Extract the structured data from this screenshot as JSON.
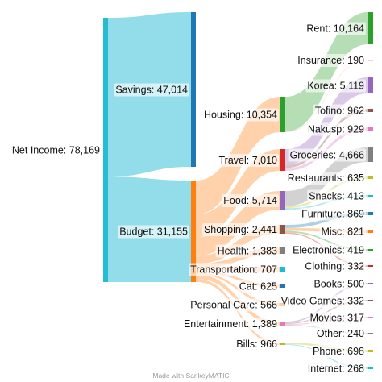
{
  "footer": {
    "credit": "Made with SankeyMATIC"
  },
  "colors": {
    "net": "#26bcd3",
    "savings": "#1f77b4",
    "budget": "#ff7f0e",
    "housing": "#2ca02c",
    "travel": "#d62728",
    "food": "#9467bd",
    "shopping": "#8c564b",
    "health": "#7f7f7f",
    "transport": "#17becf",
    "cat": "#1f77b4",
    "personal": "#ff7f0e",
    "entertainment": "#e377c2",
    "bills": "#bcbd22",
    "link_net": "#26bcd3"
  },
  "chart_data": {
    "type": "sankey",
    "nodes": [
      {
        "id": "net",
        "label": "Net Income",
        "value": "78,169",
        "color": "#26bcd3"
      },
      {
        "id": "savings",
        "label": "Savings",
        "value": "47,014",
        "color": "#1f77b4"
      },
      {
        "id": "budget",
        "label": "Budget",
        "value": "31,155",
        "color": "#ff7f0e"
      },
      {
        "id": "housing",
        "label": "Housing",
        "value": "10,354",
        "color": "#2ca02c"
      },
      {
        "id": "travel",
        "label": "Travel",
        "value": "7,010",
        "color": "#d62728"
      },
      {
        "id": "food",
        "label": "Food",
        "value": "5,714",
        "color": "#9467bd"
      },
      {
        "id": "shopping",
        "label": "Shopping",
        "value": "2,441",
        "color": "#8c564b"
      },
      {
        "id": "health",
        "label": "Health",
        "value": "1,383",
        "color": "#7f7f7f"
      },
      {
        "id": "transport",
        "label": "Transportation",
        "value": "707",
        "color": "#17becf"
      },
      {
        "id": "cat",
        "label": "Cat",
        "value": "625",
        "color": "#1f77b4"
      },
      {
        "id": "personal",
        "label": "Personal Care",
        "value": "566",
        "color": "#ff7f0e"
      },
      {
        "id": "entertainment",
        "label": "Entertainment",
        "value": "1,389",
        "color": "#e377c2"
      },
      {
        "id": "bills",
        "label": "Bills",
        "value": "966",
        "color": "#bcbd22"
      },
      {
        "id": "rent",
        "label": "Rent",
        "value": "10,164",
        "color": "#2ca02c"
      },
      {
        "id": "insurance",
        "label": "Insurance",
        "value": "190",
        "color": "#ff9896"
      },
      {
        "id": "korea",
        "label": "Korea",
        "value": "5,119",
        "color": "#9467bd"
      },
      {
        "id": "tofino",
        "label": "Tofino",
        "value": "962",
        "color": "#8c564b"
      },
      {
        "id": "nakusp",
        "label": "Nakusp",
        "value": "929",
        "color": "#e377c2"
      },
      {
        "id": "groceries",
        "label": "Groceries",
        "value": "4,666",
        "color": "#7f7f7f"
      },
      {
        "id": "restaurants",
        "label": "Restaurants",
        "value": "635",
        "color": "#bcbd22"
      },
      {
        "id": "snacks",
        "label": "Snacks",
        "value": "413",
        "color": "#17becf"
      },
      {
        "id": "furniture",
        "label": "Furniture",
        "value": "869",
        "color": "#1f77b4"
      },
      {
        "id": "misc",
        "label": "Misc",
        "value": "821",
        "color": "#ff7f0e"
      },
      {
        "id": "electronics",
        "label": "Electronics",
        "value": "419",
        "color": "#2ca02c"
      },
      {
        "id": "clothing",
        "label": "Clothing",
        "value": "332",
        "color": "#d62728"
      },
      {
        "id": "books",
        "label": "Books",
        "value": "500",
        "color": "#9467bd"
      },
      {
        "id": "videogames",
        "label": "Video Games",
        "value": "332",
        "color": "#8c564b"
      },
      {
        "id": "movies",
        "label": "Movies",
        "value": "317",
        "color": "#e377c2"
      },
      {
        "id": "other",
        "label": "Other",
        "value": "240",
        "color": "#7f7f7f"
      },
      {
        "id": "phone",
        "label": "Phone",
        "value": "698",
        "color": "#bcbd22"
      },
      {
        "id": "internet",
        "label": "Internet",
        "value": "268",
        "color": "#17becf"
      }
    ],
    "links": [
      {
        "source": "net",
        "target": "savings",
        "value": 47014
      },
      {
        "source": "net",
        "target": "budget",
        "value": 31155
      },
      {
        "source": "budget",
        "target": "housing",
        "value": 10354
      },
      {
        "source": "budget",
        "target": "travel",
        "value": 7010
      },
      {
        "source": "budget",
        "target": "food",
        "value": 5714
      },
      {
        "source": "budget",
        "target": "shopping",
        "value": 2441
      },
      {
        "source": "budget",
        "target": "health",
        "value": 1383
      },
      {
        "source": "budget",
        "target": "transport",
        "value": 707
      },
      {
        "source": "budget",
        "target": "cat",
        "value": 625
      },
      {
        "source": "budget",
        "target": "personal",
        "value": 566
      },
      {
        "source": "budget",
        "target": "entertainment",
        "value": 1389
      },
      {
        "source": "budget",
        "target": "bills",
        "value": 966
      },
      {
        "source": "housing",
        "target": "rent",
        "value": 10164
      },
      {
        "source": "housing",
        "target": "insurance",
        "value": 190
      },
      {
        "source": "travel",
        "target": "korea",
        "value": 5119
      },
      {
        "source": "travel",
        "target": "tofino",
        "value": 962
      },
      {
        "source": "travel",
        "target": "nakusp",
        "value": 929
      },
      {
        "source": "food",
        "target": "groceries",
        "value": 4666
      },
      {
        "source": "food",
        "target": "restaurants",
        "value": 635
      },
      {
        "source": "food",
        "target": "snacks",
        "value": 413
      },
      {
        "source": "shopping",
        "target": "furniture",
        "value": 869
      },
      {
        "source": "shopping",
        "target": "misc",
        "value": 821
      },
      {
        "source": "shopping",
        "target": "electronics",
        "value": 419
      },
      {
        "source": "shopping",
        "target": "clothing",
        "value": 332
      },
      {
        "source": "entertainment",
        "target": "books",
        "value": 500
      },
      {
        "source": "entertainment",
        "target": "videogames",
        "value": 332
      },
      {
        "source": "entertainment",
        "target": "movies",
        "value": 317
      },
      {
        "source": "entertainment",
        "target": "other",
        "value": 240
      },
      {
        "source": "bills",
        "target": "phone",
        "value": 698
      },
      {
        "source": "bills",
        "target": "internet",
        "value": 268
      }
    ]
  }
}
